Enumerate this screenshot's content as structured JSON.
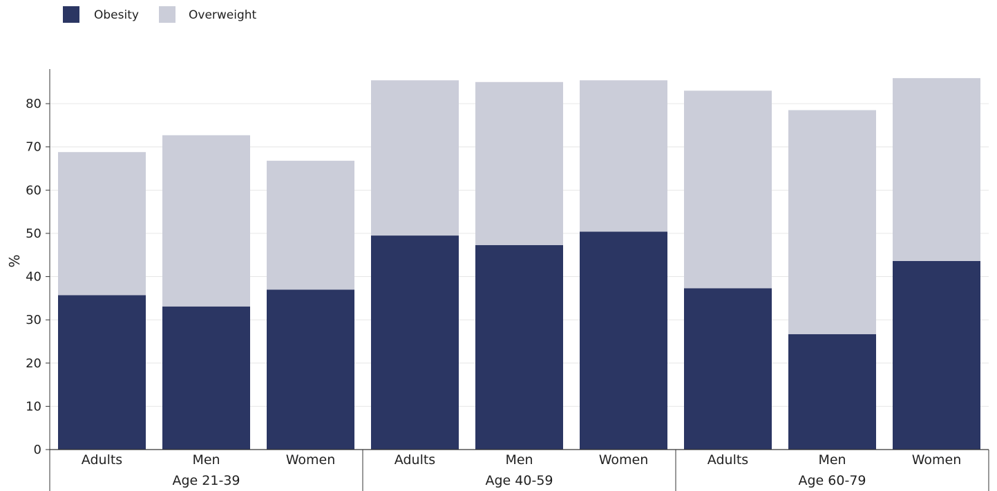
{
  "chart_data": {
    "type": "bar",
    "stacked": true,
    "title": "",
    "xlabel": "",
    "ylabel": "%",
    "ylim": [
      0,
      88
    ],
    "yticks": [
      0,
      10,
      20,
      30,
      40,
      50,
      60,
      70,
      80
    ],
    "grid": true,
    "legend_position": "top-left",
    "groups": [
      {
        "label": "Age 21-39",
        "categories": [
          "Adults",
          "Men",
          "Women"
        ]
      },
      {
        "label": "Age 40-59",
        "categories": [
          "Adults",
          "Men",
          "Women"
        ]
      },
      {
        "label": "Age 60-79",
        "categories": [
          "Adults",
          "Men",
          "Women"
        ]
      }
    ],
    "series": [
      {
        "name": "Obesity",
        "color": "#2b3663",
        "values": [
          35.7,
          33.1,
          37.0,
          49.5,
          47.3,
          50.4,
          37.3,
          26.7,
          43.6
        ]
      },
      {
        "name": "Overweight",
        "color": "#cbcdd9",
        "values": [
          33.1,
          39.6,
          29.8,
          35.9,
          37.7,
          35.0,
          45.7,
          51.8,
          42.3
        ]
      }
    ]
  }
}
